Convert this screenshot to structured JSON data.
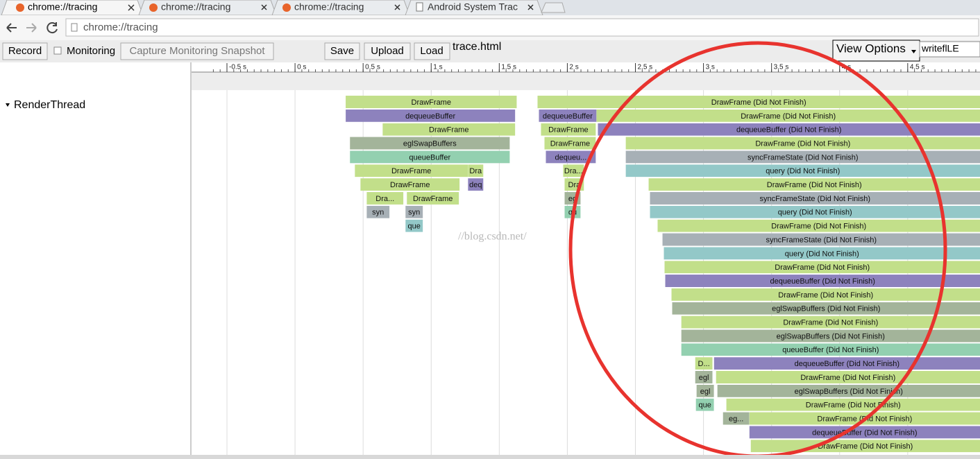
{
  "tabs": [
    "chrome://tracing",
    "chrome://tracing",
    "chrome://tracing",
    "Android System Trac"
  ],
  "address": "chrome://tracing",
  "toolbar": {
    "record": "Record",
    "monitoring": "Monitoring",
    "capture": "Capture Monitoring Snapshot",
    "save": "Save",
    "upload": "Upload",
    "load": "Load",
    "filename": "trace.html",
    "view_options": "View Options",
    "search": "writeflLE"
  },
  "timeline": {
    "xlim": [
      -0.76,
      5.031
    ],
    "xticks": [
      {
        "value": -0.5,
        "label": "-0.5 s"
      },
      {
        "value": 0,
        "label": "0 s"
      },
      {
        "value": 0.5,
        "label": "0.5 s"
      },
      {
        "value": 1,
        "label": "1 s"
      },
      {
        "value": 1.5,
        "label": "1.5 s"
      },
      {
        "value": 2,
        "label": "2 s"
      },
      {
        "value": 2.5,
        "label": "2.5 s"
      },
      {
        "value": 3,
        "label": "3 s"
      },
      {
        "value": 3.5,
        "label": "3.5 s"
      },
      {
        "value": 4,
        "label": "4 s"
      },
      {
        "value": 4.5,
        "label": "4.5 s"
      }
    ],
    "track": "RenderThread",
    "watermark": "//blog.csdn.net/",
    "slices": [
      {
        "label": "DrawFrame",
        "row": 0,
        "start": 0.372,
        "end": 1.628,
        "color": "#c2df8a"
      },
      {
        "label": "DrawFrame (Did Not Finish)",
        "row": 0,
        "start": 1.781,
        "end": 5.031,
        "color": "#c2df8a"
      },
      {
        "label": "dequeueBuffer",
        "row": 1,
        "start": 0.372,
        "end": 1.617,
        "color": "#8d82bd"
      },
      {
        "label": "dequeueBuffer",
        "row": 1,
        "start": 1.791,
        "end": 2.214,
        "color": "#8d82bd"
      },
      {
        "label": "DrawFrame (Did Not Finish)",
        "row": 1,
        "start": 2.214,
        "end": 5.031,
        "color": "#c2df8a"
      },
      {
        "label": "DrawFrame",
        "row": 2,
        "start": 0.643,
        "end": 1.617,
        "color": "#c2df8a"
      },
      {
        "label": "DrawFrame",
        "row": 2,
        "start": 1.806,
        "end": 2.209,
        "color": "#c2df8a"
      },
      {
        "label": "dequeueBuffer (Did Not Finish)",
        "row": 2,
        "start": 2.224,
        "end": 5.031,
        "color": "#8d82bd"
      },
      {
        "label": "eglSwapBuffers",
        "row": 3,
        "start": 0.403,
        "end": 1.577,
        "color": "#a3b49a"
      },
      {
        "label": "DrawFrame",
        "row": 3,
        "start": 1.832,
        "end": 2.209,
        "color": "#c2df8a"
      },
      {
        "label": "DrawFrame (Did Not Finish)",
        "row": 3,
        "start": 2.429,
        "end": 5.031,
        "color": "#c2df8a"
      },
      {
        "label": "queueBuffer",
        "row": 4,
        "start": 0.403,
        "end": 1.577,
        "color": "#93d0b0"
      },
      {
        "label": "dequeu...",
        "row": 4,
        "start": 1.842,
        "end": 2.209,
        "color": "#8d82bd"
      },
      {
        "label": "syncFrameState (Did Not Finish)",
        "row": 4,
        "start": 2.429,
        "end": 5.031,
        "color": "#a7b0b6"
      },
      {
        "label": "DrawFrame",
        "row": 5,
        "start": 0.439,
        "end": 1.27,
        "color": "#c2df8a"
      },
      {
        "label": "Dra",
        "row": 5,
        "start": 1.27,
        "end": 1.383,
        "color": "#c2df8a"
      },
      {
        "label": "Dra...",
        "row": 5,
        "start": 1.969,
        "end": 2.122,
        "color": "#c2df8a"
      },
      {
        "label": "query (Did Not Finish)",
        "row": 5,
        "start": 2.429,
        "end": 5.031,
        "color": "#93c8c8"
      },
      {
        "label": "DrawFrame",
        "row": 6,
        "start": 0.48,
        "end": 1.209,
        "color": "#c2df8a"
      },
      {
        "label": "deq",
        "row": 6,
        "start": 1.27,
        "end": 1.383,
        "color": "#8d82bd"
      },
      {
        "label": "Dra",
        "row": 6,
        "start": 1.98,
        "end": 2.122,
        "color": "#c2df8a"
      },
      {
        "label": "DrawFrame (Did Not Finish)",
        "row": 6,
        "start": 2.597,
        "end": 5.031,
        "color": "#c2df8a"
      },
      {
        "label": "Dra...",
        "row": 7,
        "start": 0.526,
        "end": 0.796,
        "color": "#c2df8a"
      },
      {
        "label": "DrawFrame",
        "row": 7,
        "start": 0.821,
        "end": 1.204,
        "color": "#c2df8a"
      },
      {
        "label": "eg",
        "row": 7,
        "start": 1.98,
        "end": 2.097,
        "color": "#a3b49a"
      },
      {
        "label": "syncFrameState (Did Not Finish)",
        "row": 7,
        "start": 2.607,
        "end": 5.031,
        "color": "#a7b0b6"
      },
      {
        "label": "syn",
        "row": 8,
        "start": 0.526,
        "end": 0.694,
        "color": "#a7b0b6"
      },
      {
        "label": "syn",
        "row": 8,
        "start": 0.811,
        "end": 0.939,
        "color": "#a7b0b6"
      },
      {
        "label": "qu",
        "row": 8,
        "start": 1.98,
        "end": 2.097,
        "color": "#93d0b0"
      },
      {
        "label": "query (Did Not Finish)",
        "row": 8,
        "start": 2.607,
        "end": 5.031,
        "color": "#93c8c8"
      },
      {
        "label": "que",
        "row": 9,
        "start": 0.811,
        "end": 0.939,
        "color": "#93c8c8"
      },
      {
        "label": "DrawFrame (Did Not Finish)",
        "row": 9,
        "start": 2.663,
        "end": 5.031,
        "color": "#c2df8a"
      },
      {
        "label": "syncFrameState (Did Not Finish)",
        "row": 10,
        "start": 2.699,
        "end": 5.031,
        "color": "#a7b0b6"
      },
      {
        "label": "query (Did Not Finish)",
        "row": 11,
        "start": 2.709,
        "end": 5.031,
        "color": "#93c8c8"
      },
      {
        "label": "DrawFrame (Did Not Finish)",
        "row": 12,
        "start": 2.714,
        "end": 5.031,
        "color": "#c2df8a"
      },
      {
        "label": "dequeueBuffer (Did Not Finish)",
        "row": 13,
        "start": 2.719,
        "end": 5.031,
        "color": "#8d82bd"
      },
      {
        "label": "DrawFrame (Did Not Finish)",
        "row": 14,
        "start": 2.765,
        "end": 5.031,
        "color": "#c2df8a"
      },
      {
        "label": "eglSwapBuffers (Did Not Finish)",
        "row": 15,
        "start": 2.77,
        "end": 5.031,
        "color": "#a3b49a"
      },
      {
        "label": "DrawFrame (Did Not Finish)",
        "row": 16,
        "start": 2.837,
        "end": 5.031,
        "color": "#c2df8a"
      },
      {
        "label": "eglSwapBuffers (Did Not Finish)",
        "row": 17,
        "start": 2.837,
        "end": 5.031,
        "color": "#a3b49a"
      },
      {
        "label": "queueBuffer (Did Not Finish)",
        "row": 18,
        "start": 2.837,
        "end": 5.031,
        "color": "#93d0b0"
      },
      {
        "label": "D...",
        "row": 19,
        "start": 2.939,
        "end": 3.066,
        "color": "#c2df8a"
      },
      {
        "label": "dequeueBuffer (Did Not Finish)",
        "row": 19,
        "start": 3.077,
        "end": 5.031,
        "color": "#8d82bd"
      },
      {
        "label": "egl",
        "row": 20,
        "start": 2.939,
        "end": 3.066,
        "color": "#a3b49a"
      },
      {
        "label": "DrawFrame (Did Not Finish)",
        "row": 20,
        "start": 3.092,
        "end": 5.031,
        "color": "#c2df8a"
      },
      {
        "label": "egl",
        "row": 21,
        "start": 2.949,
        "end": 3.077,
        "color": "#a3b49a"
      },
      {
        "label": "eglSwapBuffers (Did Not Finish)",
        "row": 21,
        "start": 3.102,
        "end": 5.031,
        "color": "#a3b49a"
      },
      {
        "label": "que",
        "row": 22,
        "start": 2.944,
        "end": 3.077,
        "color": "#93d0b0"
      },
      {
        "label": "DrawFrame (Did Not Finish)",
        "row": 22,
        "start": 3.168,
        "end": 5.031,
        "color": "#c2df8a"
      },
      {
        "label": "eg...",
        "row": 23,
        "start": 3.143,
        "end": 3.337,
        "color": "#a3b49a"
      },
      {
        "label": "DrawFrame (Did Not Finish)",
        "row": 23,
        "start": 3.337,
        "end": 5.031,
        "color": "#c2df8a"
      },
      {
        "label": "dequeueBuffer (Did Not Finish)",
        "row": 24,
        "start": 3.337,
        "end": 5.031,
        "color": "#8d82bd"
      },
      {
        "label": "DrawFrame (Did Not Finish)",
        "row": 25,
        "start": 3.347,
        "end": 5.031,
        "color": "#c2df8a"
      }
    ]
  }
}
